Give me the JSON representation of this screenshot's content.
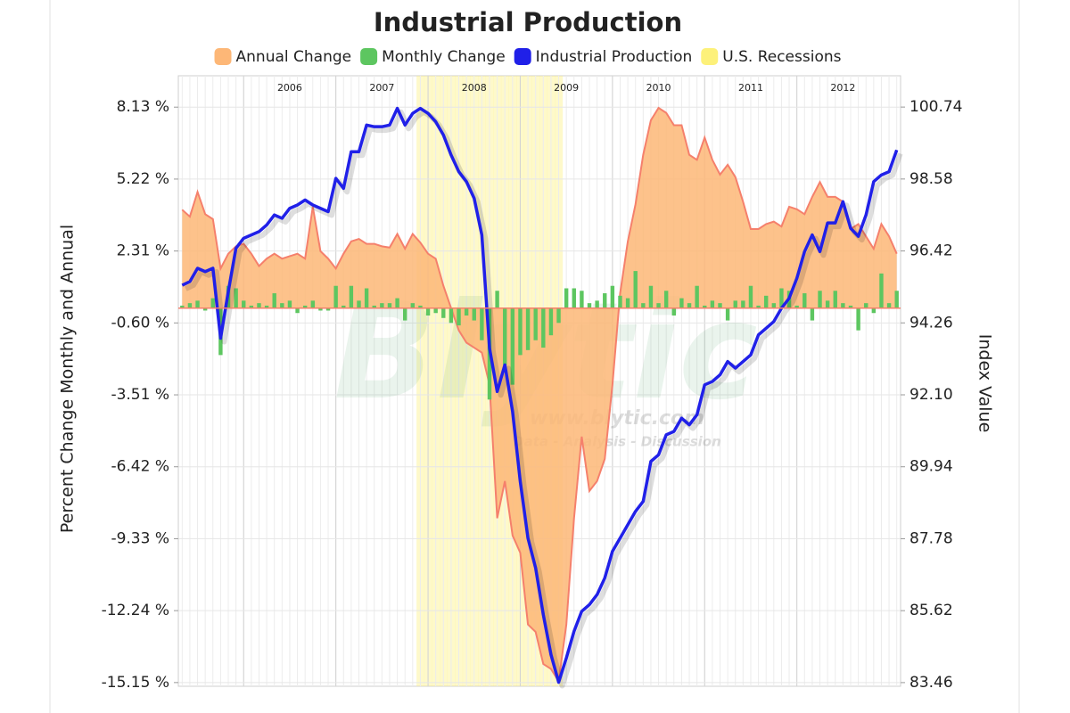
{
  "chart_data": {
    "type": "combo",
    "title": "Industrial Production",
    "ylabel": "Percent Change Monthly and Annual",
    "y2label": "Index Value",
    "watermark": [
      "Blytic",
      "www.blytic.com",
      "Data - Analysis - Discussion"
    ],
    "grid": true,
    "categories": [
      null,
      null,
      null,
      null,
      null,
      null,
      null,
      null,
      null,
      null,
      null,
      null,
      null,
      null,
      "2006",
      null,
      null,
      null,
      null,
      null,
      null,
      null,
      null,
      null,
      null,
      null,
      "2007",
      null,
      null,
      null,
      null,
      null,
      null,
      null,
      null,
      null,
      null,
      null,
      "2008",
      null,
      null,
      null,
      null,
      null,
      null,
      null,
      null,
      null,
      null,
      null,
      "2009",
      null,
      null,
      null,
      null,
      null,
      null,
      null,
      null,
      null,
      null,
      null,
      "2010",
      null,
      null,
      null,
      null,
      null,
      null,
      null,
      null,
      null,
      null,
      null,
      "2011",
      null,
      null,
      null,
      null,
      null,
      null,
      null,
      null,
      null,
      null,
      null,
      "2012",
      null,
      null,
      null,
      null,
      null,
      null,
      null
    ],
    "series": [
      {
        "name": "Annual Change",
        "type": "area",
        "color": "#fdb777",
        "stroke": "#f5806c",
        "values": [
          3.98,
          3.7,
          4.7,
          3.8,
          3.6,
          1.6,
          2.2,
          2.5,
          2.6,
          2.2,
          1.7,
          2.0,
          2.2,
          2.0,
          2.1,
          2.2,
          2.0,
          4.1,
          2.3,
          2.0,
          1.6,
          2.2,
          2.7,
          2.8,
          2.6,
          2.6,
          2.5,
          2.45,
          3.0,
          2.4,
          3.0,
          2.65,
          2.2,
          2.0,
          0.9,
          0.0,
          -0.9,
          -1.4,
          -1.6,
          -1.8,
          -3.1,
          -8.5,
          -7.0,
          -9.2,
          -9.9,
          -12.8,
          -13.1,
          -14.4,
          -14.6,
          -15.1,
          -12.8,
          -8.5,
          -5.2,
          -7.4,
          -7.0,
          -6.1,
          -3.1,
          0.6,
          2.7,
          4.2,
          6.2,
          7.6,
          8.1,
          7.9,
          7.4,
          7.4,
          6.2,
          6.0,
          6.9,
          6.0,
          5.4,
          5.8,
          5.3,
          4.3,
          3.2,
          3.2,
          3.4,
          3.5,
          3.3,
          4.1,
          4.0,
          3.8,
          4.5,
          5.1,
          4.5,
          4.5,
          4.3,
          3.2,
          3.4,
          2.9,
          2.4,
          3.4,
          2.9,
          2.2
        ]
      },
      {
        "name": "Monthly Change",
        "type": "bar",
        "color": "#5dc660",
        "values": [
          0.1,
          0.2,
          0.3,
          -0.1,
          0.4,
          -1.9,
          0.9,
          0.8,
          0.3,
          0.1,
          0.2,
          0.1,
          0.6,
          0.2,
          0.3,
          -0.2,
          0.1,
          0.3,
          -0.1,
          -0.1,
          0.9,
          0.1,
          0.9,
          0.3,
          0.8,
          0.1,
          0.2,
          0.2,
          0.4,
          -0.5,
          0.2,
          0.1,
          -0.3,
          -0.2,
          -0.4,
          -0.6,
          -0.7,
          -0.3,
          -0.5,
          -1.3,
          -3.7,
          0.7,
          -2.3,
          -3.1,
          -1.9,
          -1.7,
          -1.3,
          -1.6,
          -1.1,
          -0.6,
          0.8,
          0.8,
          0.7,
          0.2,
          0.3,
          0.6,
          0.9,
          0.5,
          0.4,
          1.5,
          0.2,
          0.9,
          0.2,
          0.7,
          -0.3,
          0.4,
          0.2,
          0.9,
          0.1,
          0.3,
          0.2,
          -0.5,
          0.3,
          0.3,
          0.9,
          0.1,
          0.5,
          0.2,
          0.8,
          0.7,
          0.1,
          0.6,
          -0.5,
          0.7,
          0.3,
          0.7,
          0.2,
          0.1,
          -0.9,
          0.2,
          -0.2,
          1.4,
          0.2,
          0.7
        ]
      },
      {
        "name": "Industrial Production",
        "type": "line",
        "axis": "y2",
        "color": "#2020e8",
        "values": [
          95.39,
          95.5,
          95.9,
          95.8,
          95.9,
          93.8,
          95.2,
          96.5,
          96.8,
          96.9,
          97.0,
          97.2,
          97.5,
          97.4,
          97.7,
          97.8,
          97.95,
          97.8,
          97.7,
          97.6,
          98.6,
          98.3,
          99.4,
          99.4,
          100.2,
          100.15,
          100.15,
          100.2,
          100.7,
          100.2,
          100.55,
          100.7,
          100.55,
          100.3,
          99.9,
          99.3,
          98.8,
          98.5,
          98.0,
          96.9,
          93.5,
          92.2,
          93.0,
          91.6,
          89.5,
          87.8,
          86.9,
          85.5,
          84.3,
          83.47,
          84.2,
          85.0,
          85.6,
          85.8,
          86.1,
          86.6,
          87.4,
          87.8,
          88.2,
          88.6,
          88.9,
          90.1,
          90.3,
          90.9,
          91.0,
          91.4,
          91.2,
          91.5,
          92.4,
          92.5,
          92.7,
          93.1,
          92.9,
          93.1,
          93.3,
          93.9,
          94.1,
          94.3,
          94.7,
          95.0,
          95.6,
          96.4,
          96.9,
          96.4,
          97.26,
          97.26,
          97.9,
          97.1,
          96.86,
          97.5,
          98.5,
          98.7,
          98.8,
          99.45
        ]
      }
    ],
    "recessions": {
      "name": "U.S. Recessions",
      "color": "#fdf17a",
      "values": [
        false,
        false,
        false,
        false,
        false,
        false,
        false,
        false,
        false,
        false,
        false,
        false,
        false,
        false,
        false,
        false,
        false,
        false,
        false,
        false,
        false,
        false,
        false,
        false,
        false,
        false,
        false,
        false,
        false,
        false,
        false,
        true,
        true,
        true,
        true,
        true,
        true,
        true,
        true,
        true,
        true,
        true,
        true,
        true,
        true,
        true,
        true,
        true,
        true,
        true,
        false,
        false,
        false,
        false,
        false,
        false,
        false,
        false,
        false,
        false,
        false,
        false,
        false,
        false,
        false,
        false,
        false,
        false,
        false,
        false,
        false,
        false,
        false,
        false,
        false,
        false,
        false,
        false,
        false,
        false,
        false,
        false,
        false,
        false,
        false,
        false,
        false,
        false,
        false,
        false,
        false,
        false,
        false,
        false
      ]
    },
    "ylim": [
      -15.3,
      9.4
    ],
    "yticks": [
      {
        "value": 8.13,
        "label": "8.13 %"
      },
      {
        "value": 5.22,
        "label": "5.22 %"
      },
      {
        "value": 2.31,
        "label": "2.31 %"
      },
      {
        "value": -0.6,
        "label": "-0.60 %"
      },
      {
        "value": -3.51,
        "label": "-3.51 %"
      },
      {
        "value": -6.42,
        "label": "-6.42 %"
      },
      {
        "value": -9.33,
        "label": "-9.33 %"
      },
      {
        "value": -12.24,
        "label": "-12.24 %"
      },
      {
        "value": -15.15,
        "label": "-15.15 %"
      }
    ],
    "y2lim": [
      83.35,
      101.68
    ],
    "y2ticks": [
      100.74,
      98.58,
      96.42,
      94.26,
      {
        "value": 92.1,
        "label": "92.10"
      },
      89.94,
      87.78,
      85.62,
      83.46
    ]
  }
}
